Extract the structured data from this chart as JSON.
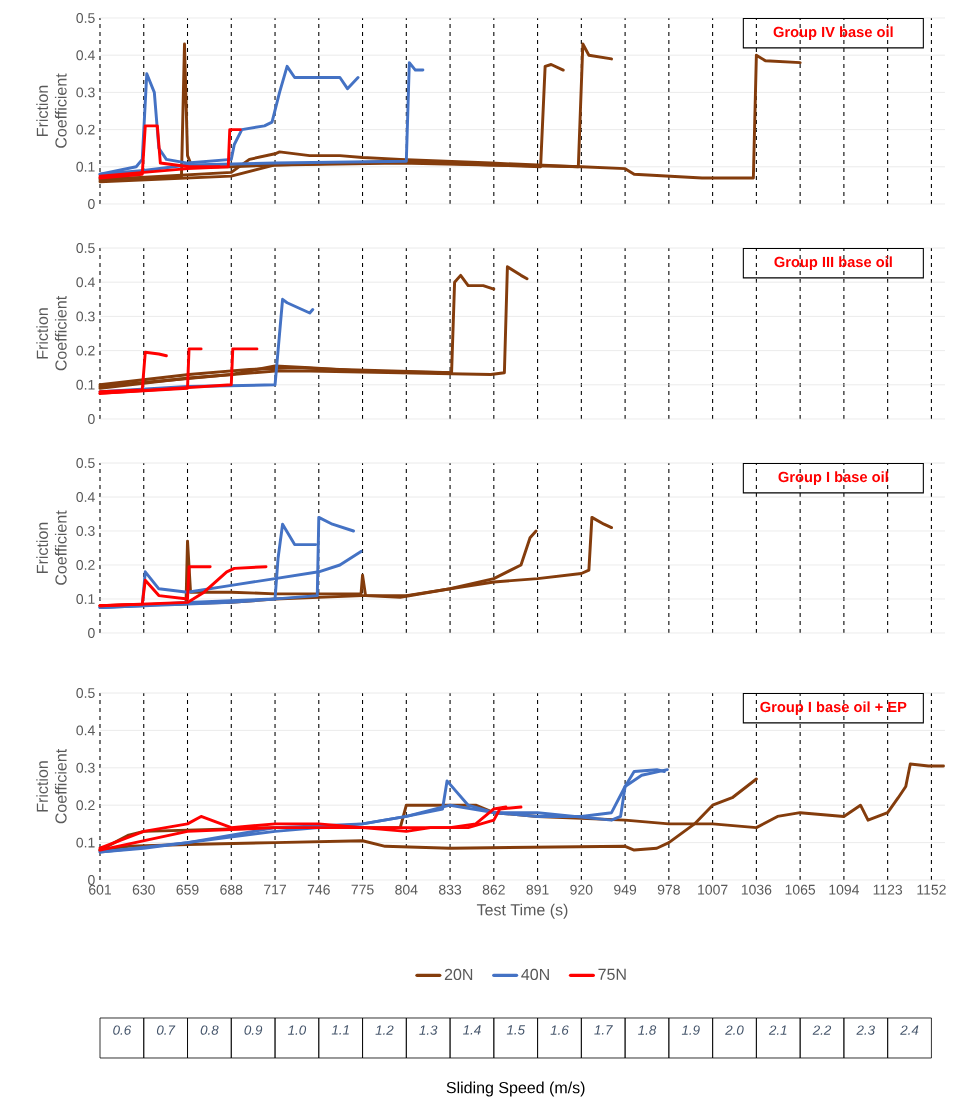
{
  "chart_data": [
    {
      "type": "line",
      "title": "Group IV base oil",
      "ylabel": "Friction Coefficient",
      "xlim": [
        601,
        1161
      ],
      "ylim": [
        0,
        0.5
      ],
      "xticks": [
        601,
        630,
        659,
        688,
        717,
        746,
        775,
        804,
        833,
        862,
        891,
        920,
        949,
        978,
        1007,
        1036,
        1065,
        1094,
        1123,
        1152
      ],
      "yticks": [
        0,
        0.1,
        0.2,
        0.3,
        0.4,
        0.5
      ],
      "grid": true,
      "tick_labels": "y",
      "series": [
        {
          "color": "#843c0c",
          "x": [
            601,
            640,
            655,
            657,
            659,
            662,
            688,
            717,
            800,
            860,
            893,
            896,
            900,
            908
          ],
          "values": [
            0.07,
            0.07,
            0.075,
            0.43,
            0.13,
            0.1,
            0.1,
            0.105,
            0.11,
            0.105,
            0.1,
            0.37,
            0.375,
            0.36
          ]
        },
        {
          "color": "#843c0c",
          "x": [
            601,
            688,
            700,
            717,
            720,
            740,
            760,
            775,
            800,
            860,
            918,
            921,
            925,
            940
          ],
          "values": [
            0.065,
            0.085,
            0.12,
            0.135,
            0.14,
            0.13,
            0.13,
            0.125,
            0.12,
            0.11,
            0.1,
            0.43,
            0.4,
            0.39
          ]
        },
        {
          "color": "#843c0c",
          "x": [
            601,
            688,
            717,
            800,
            860,
            920,
            949,
            955,
            1000,
            1034,
            1036,
            1042,
            1065
          ],
          "values": [
            0.06,
            0.075,
            0.105,
            0.115,
            0.105,
            0.1,
            0.095,
            0.08,
            0.07,
            0.07,
            0.4,
            0.385,
            0.38
          ]
        },
        {
          "color": "#4472c4",
          "x": [
            601,
            625,
            629,
            632,
            637,
            640,
            645,
            659,
            688,
            690,
            695,
            710,
            715,
            720,
            725,
            730,
            760,
            765,
            772
          ],
          "values": [
            0.08,
            0.1,
            0.12,
            0.35,
            0.3,
            0.15,
            0.12,
            0.11,
            0.12,
            0.16,
            0.2,
            0.21,
            0.22,
            0.3,
            0.37,
            0.34,
            0.34,
            0.31,
            0.34
          ]
        },
        {
          "color": "#4472c4",
          "x": [
            601,
            630,
            659,
            717,
            804,
            806,
            810,
            815
          ],
          "values": [
            0.08,
            0.09,
            0.105,
            0.11,
            0.115,
            0.38,
            0.36,
            0.36
          ]
        },
        {
          "color": "#ff0000",
          "x": [
            601,
            629,
            631,
            639,
            641,
            660,
            680
          ],
          "values": [
            0.07,
            0.08,
            0.21,
            0.21,
            0.11,
            0.1,
            0.1
          ]
        },
        {
          "color": "#ff0000",
          "x": [
            601,
            659,
            686,
            687,
            694
          ],
          "values": [
            0.075,
            0.095,
            0.1,
            0.2,
            0.2
          ]
        }
      ]
    },
    {
      "type": "line",
      "title": "Group III base oil",
      "ylabel": "Friction Coefficient",
      "xlim": [
        601,
        1161
      ],
      "ylim": [
        0,
        0.5
      ],
      "xticks": [
        601,
        630,
        659,
        688,
        717,
        746,
        775,
        804,
        833,
        862,
        891,
        920,
        949,
        978,
        1007,
        1036,
        1065,
        1094,
        1123,
        1152
      ],
      "yticks": [
        0,
        0.1,
        0.2,
        0.3,
        0.4,
        0.5
      ],
      "grid": true,
      "tick_labels": "y",
      "series": [
        {
          "color": "#843c0c",
          "x": [
            601,
            660,
            700,
            730,
            760,
            800,
            834,
            836,
            840,
            845,
            855,
            862
          ],
          "values": [
            0.1,
            0.13,
            0.145,
            0.15,
            0.145,
            0.14,
            0.135,
            0.4,
            0.42,
            0.39,
            0.39,
            0.38
          ]
        },
        {
          "color": "#843c0c",
          "x": [
            601,
            660,
            717,
            740,
            800,
            860,
            869,
            871,
            880,
            884
          ],
          "values": [
            0.09,
            0.12,
            0.14,
            0.14,
            0.135,
            0.13,
            0.135,
            0.445,
            0.42,
            0.41
          ]
        },
        {
          "color": "#843c0c",
          "x": [
            601,
            688,
            717,
            740,
            775,
            833
          ],
          "values": [
            0.095,
            0.13,
            0.155,
            0.15,
            0.14,
            0.135
          ]
        },
        {
          "color": "#4472c4",
          "x": [
            601,
            659,
            717,
            722,
            725,
            735,
            740,
            742
          ],
          "values": [
            0.08,
            0.095,
            0.1,
            0.35,
            0.34,
            0.32,
            0.31,
            0.32
          ]
        },
        {
          "color": "#ff0000",
          "x": [
            601,
            629,
            631,
            640,
            645
          ],
          "values": [
            0.08,
            0.085,
            0.195,
            0.19,
            0.185
          ]
        },
        {
          "color": "#ff0000",
          "x": [
            601,
            659,
            660,
            668
          ],
          "values": [
            0.075,
            0.09,
            0.205,
            0.205
          ]
        },
        {
          "color": "#ff0000",
          "x": [
            601,
            688,
            689,
            705
          ],
          "values": [
            0.075,
            0.1,
            0.205,
            0.205
          ]
        }
      ]
    },
    {
      "type": "line",
      "title": "Group I base oil",
      "ylabel": "Friction Coefficient",
      "xlim": [
        601,
        1161
      ],
      "ylim": [
        0,
        0.5
      ],
      "xticks": [
        601,
        630,
        659,
        688,
        717,
        746,
        775,
        804,
        833,
        862,
        891,
        920,
        949,
        978,
        1007,
        1036,
        1065,
        1094,
        1123,
        1152
      ],
      "yticks": [
        0,
        0.1,
        0.2,
        0.3,
        0.4,
        0.5
      ],
      "grid": true,
      "tick_labels": "y",
      "series": [
        {
          "color": "#843c0c",
          "x": [
            601,
            658,
            659,
            661,
            688,
            717,
            774,
            775,
            777,
            800,
            833,
            862,
            880,
            886,
            890
          ],
          "values": [
            0.08,
            0.085,
            0.27,
            0.12,
            0.12,
            0.115,
            0.115,
            0.17,
            0.11,
            0.105,
            0.13,
            0.16,
            0.2,
            0.28,
            0.3
          ]
        },
        {
          "color": "#843c0c",
          "x": [
            601,
            688,
            717,
            775,
            804,
            833,
            862,
            891,
            920,
            925,
            927,
            935,
            940
          ],
          "values": [
            0.08,
            0.09,
            0.1,
            0.11,
            0.11,
            0.13,
            0.15,
            0.16,
            0.175,
            0.185,
            0.34,
            0.32,
            0.31
          ]
        },
        {
          "color": "#4472c4",
          "x": [
            601,
            629,
            631,
            640,
            659,
            688,
            717,
            746,
            760,
            774
          ],
          "values": [
            0.075,
            0.08,
            0.18,
            0.13,
            0.12,
            0.14,
            0.16,
            0.18,
            0.2,
            0.24
          ]
        },
        {
          "color": "#4472c4",
          "x": [
            601,
            659,
            717,
            719,
            722,
            730,
            744
          ],
          "values": [
            0.075,
            0.09,
            0.1,
            0.22,
            0.32,
            0.26,
            0.26
          ]
        },
        {
          "color": "#4472c4",
          "x": [
            601,
            688,
            745,
            746,
            755,
            769
          ],
          "values": [
            0.075,
            0.09,
            0.11,
            0.34,
            0.32,
            0.3
          ]
        },
        {
          "color": "#ff0000",
          "x": [
            601,
            629,
            631,
            640,
            659,
            660,
            674
          ],
          "values": [
            0.08,
            0.085,
            0.155,
            0.11,
            0.1,
            0.195,
            0.195
          ]
        },
        {
          "color": "#ff0000",
          "x": [
            601,
            659,
            670,
            685,
            690,
            711
          ],
          "values": [
            0.08,
            0.09,
            0.12,
            0.18,
            0.19,
            0.195
          ]
        }
      ]
    },
    {
      "type": "line",
      "title": "Group I base oil + EP",
      "ylabel": "Friction Coefficient",
      "xlabel": "Test Time (s)",
      "xlim": [
        601,
        1161
      ],
      "ylim": [
        0,
        0.5
      ],
      "xticks": [
        601,
        630,
        659,
        688,
        717,
        746,
        775,
        804,
        833,
        862,
        891,
        920,
        949,
        978,
        1007,
        1036,
        1065,
        1094,
        1123,
        1152
      ],
      "yticks": [
        0,
        0.1,
        0.2,
        0.3,
        0.4,
        0.5
      ],
      "grid": true,
      "legend": "bottom",
      "series": [
        {
          "name": "20N",
          "color": "#843c0c",
          "x": [
            601,
            620,
            659,
            717,
            775,
            790,
            833,
            949,
            955,
            970,
            978,
            995,
            1007,
            1020,
            1036
          ],
          "values": [
            0.08,
            0.09,
            0.095,
            0.1,
            0.105,
            0.09,
            0.085,
            0.09,
            0.08,
            0.085,
            0.1,
            0.15,
            0.2,
            0.22,
            0.27
          ]
        },
        {
          "color": "#843c0c",
          "x": [
            601,
            620,
            630,
            717,
            800,
            804,
            830,
            850,
            862,
            891,
            949,
            978,
            1007,
            1036,
            1050,
            1065,
            1094,
            1105,
            1110,
            1123,
            1130,
            1135,
            1138,
            1150,
            1160
          ],
          "values": [
            0.08,
            0.12,
            0.13,
            0.14,
            0.14,
            0.2,
            0.2,
            0.2,
            0.18,
            0.17,
            0.16,
            0.15,
            0.15,
            0.14,
            0.17,
            0.18,
            0.17,
            0.2,
            0.16,
            0.18,
            0.22,
            0.25,
            0.31,
            0.305,
            0.305
          ]
        },
        {
          "name": "40N",
          "color": "#4472c4",
          "x": [
            601,
            630,
            659,
            688,
            717,
            775,
            804,
            828,
            831,
            845,
            862,
            891,
            920,
            940,
            949,
            960,
            977
          ],
          "values": [
            0.075,
            0.085,
            0.1,
            0.12,
            0.14,
            0.15,
            0.17,
            0.19,
            0.265,
            0.2,
            0.18,
            0.17,
            0.17,
            0.18,
            0.25,
            0.28,
            0.295
          ]
        },
        {
          "color": "#4472c4",
          "x": [
            601,
            659,
            717,
            775,
            804,
            833,
            862,
            891,
            940,
            946,
            949,
            955,
            970,
            975
          ],
          "values": [
            0.075,
            0.1,
            0.13,
            0.15,
            0.17,
            0.2,
            0.18,
            0.18,
            0.16,
            0.17,
            0.25,
            0.29,
            0.295,
            0.29
          ]
        },
        {
          "name": "75N",
          "color": "#ff0000",
          "x": [
            601,
            630,
            659,
            668,
            688,
            717,
            746,
            775,
            804,
            820,
            845,
            862,
            866,
            880
          ],
          "values": [
            0.085,
            0.13,
            0.15,
            0.17,
            0.14,
            0.15,
            0.15,
            0.14,
            0.13,
            0.14,
            0.14,
            0.16,
            0.19,
            0.195
          ]
        },
        {
          "color": "#ff0000",
          "x": [
            601,
            659,
            717,
            775,
            804,
            833,
            850,
            862,
            870
          ],
          "values": [
            0.08,
            0.13,
            0.14,
            0.14,
            0.14,
            0.14,
            0.15,
            0.19,
            0.195
          ]
        }
      ],
      "annotations": [
        "0.6",
        "0.7",
        "0.8",
        "0.9",
        "1.0",
        "1.1",
        "1.2",
        "1.3",
        "1.4",
        "1.5",
        "1.6",
        "1.7",
        "1.8",
        "1.9",
        "2.0",
        "2.1",
        "2.2",
        "2.3",
        "2.4",
        "Sliding Speed (m/s)"
      ]
    }
  ]
}
